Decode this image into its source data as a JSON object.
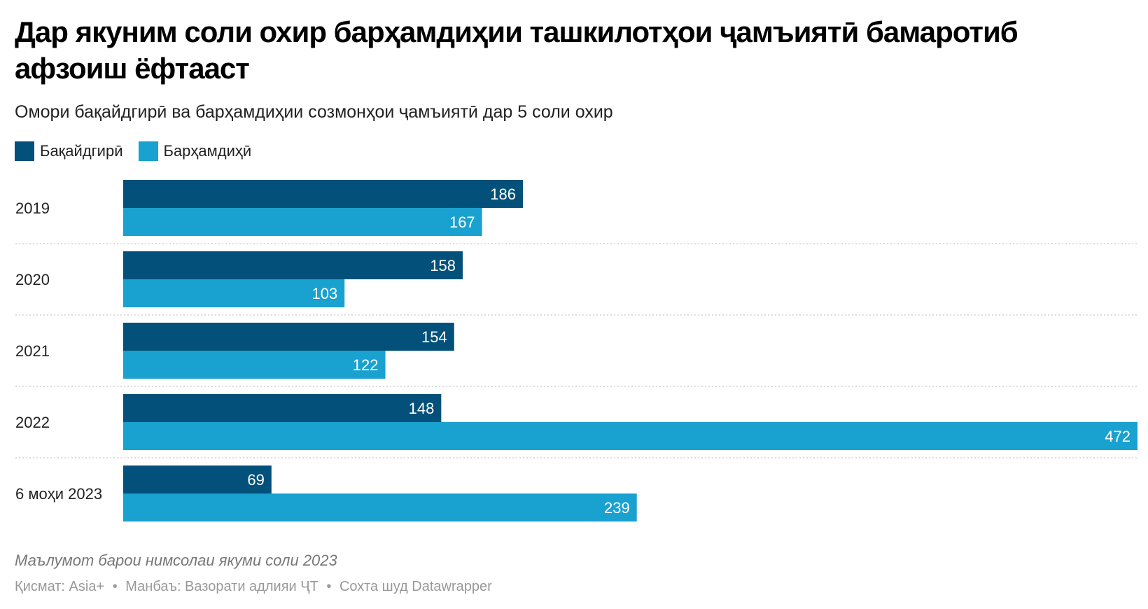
{
  "title": "Дар якуним соли охир барҳамдиҳии ташкилотҳои ҷамъиятӣ бамаротиб афзоиш ёфтааст",
  "subtitle": "Омори бақайдгирӣ ва барҳамдиҳии созмонҳои ҷамъиятӣ дар 5 соли охир",
  "note": "Маълумот барои нимсолаи якуми соли 2023",
  "credits": {
    "chart_by": "Қисмат: Asia+",
    "source": "Манбаъ: Вазорати адлияи ҶТ",
    "made_with": "Сохта шуд Datawrapper",
    "sep": "•"
  },
  "chart_data": {
    "type": "bar",
    "orientation": "horizontal",
    "categories": [
      "2019",
      "2020",
      "2021",
      "2022",
      "6 моҳи 2023"
    ],
    "series": [
      {
        "name": "Бақайдгирӣ",
        "color": "#03517a",
        "values": [
          186,
          158,
          154,
          148,
          69
        ]
      },
      {
        "name": "Барҳамдиҳӣ",
        "color": "#19a1d0",
        "values": [
          167,
          103,
          122,
          472,
          239
        ]
      }
    ],
    "xlim": [
      0,
      472
    ],
    "legend": "top-left",
    "grid": false
  }
}
